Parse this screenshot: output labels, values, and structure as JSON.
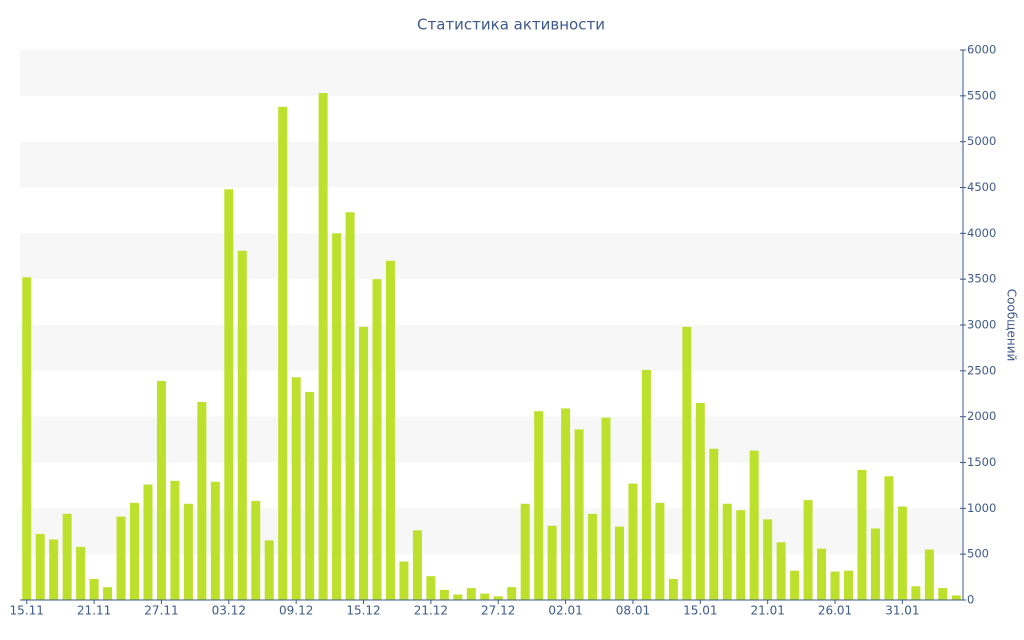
{
  "chart_data": {
    "type": "bar",
    "title": "Статистика активности",
    "y_label": "Сообщений",
    "categories": [
      "15.11",
      null,
      null,
      null,
      null,
      "21.11",
      null,
      null,
      null,
      null,
      "27.11",
      null,
      null,
      null,
      null,
      "03.12",
      null,
      null,
      null,
      null,
      "09.12",
      null,
      null,
      null,
      null,
      "15.12",
      null,
      null,
      null,
      null,
      "21.12",
      null,
      null,
      null,
      null,
      "27.12",
      null,
      null,
      null,
      null,
      "02.01",
      null,
      null,
      null,
      null,
      "08.01",
      null,
      null,
      null,
      null,
      "15.01",
      null,
      null,
      null,
      null,
      "21.01",
      null,
      null,
      null,
      null,
      "26.01",
      null,
      null,
      null,
      null,
      "31.01",
      null,
      null,
      null,
      null
    ],
    "values": [
      3520,
      720,
      660,
      940,
      580,
      230,
      140,
      910,
      1060,
      1260,
      2390,
      1300,
      1050,
      2160,
      1290,
      4480,
      3810,
      1080,
      650,
      5380,
      2430,
      2270,
      5530,
      4000,
      4230,
      2980,
      3500,
      3700,
      420,
      760,
      260,
      110,
      60,
      130,
      70,
      40,
      140,
      1050,
      2060,
      810,
      2090,
      1860,
      940,
      1990,
      800,
      1270,
      2510,
      1060,
      230,
      2980,
      2150,
      1650,
      1050,
      980,
      1630,
      880,
      630,
      320,
      1090,
      560,
      310,
      320,
      1420,
      780,
      1350,
      1020,
      150,
      550,
      130,
      50
    ],
    "color": "#bde02c",
    "ylim": [
      0,
      6000
    ],
    "yticks": [
      0,
      500,
      1000,
      1500,
      2000,
      2500,
      3000,
      3500,
      4000,
      4500,
      5000,
      5500,
      6000
    ],
    "y_axis_side": "right",
    "striped_background": true
  }
}
